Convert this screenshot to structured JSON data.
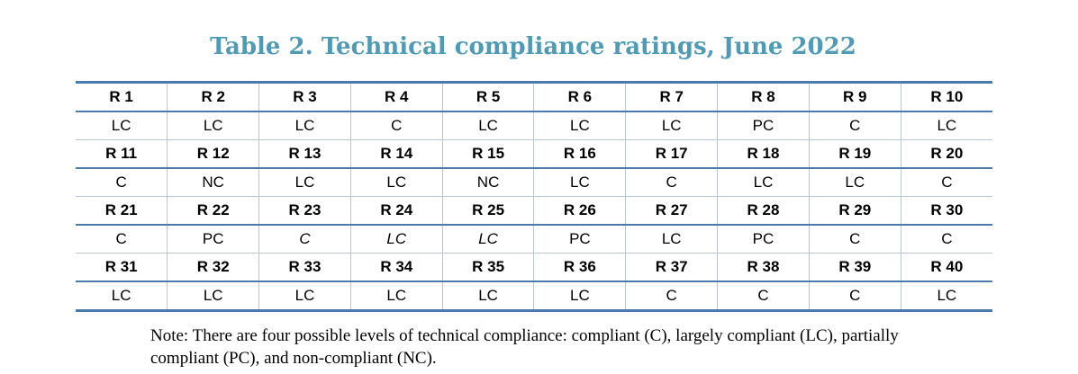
{
  "title": "Table 2. Technical compliance ratings, June 2022",
  "note": "Note: There are four possible levels of technical compliance: compliant (C), largely compliant (LC), partially compliant (PC), and non-compliant (NC).",
  "colors": {
    "title": "#4f9bb5",
    "rule": "#4a7aab",
    "grid": "#b9c6d3"
  },
  "rows": [
    {
      "headers": [
        "R 1",
        "R 2",
        "R 3",
        "R 4",
        "R 5",
        "R 6",
        "R 7",
        "R 8",
        "R 9",
        "R 10"
      ],
      "ratings": [
        "LC",
        "LC",
        "LC",
        "C",
        "LC",
        "LC",
        "LC",
        "PC",
        "C",
        "LC"
      ]
    },
    {
      "headers": [
        "R 11",
        "R 12",
        "R 13",
        "R 14",
        "R 15",
        "R 16",
        "R 17",
        "R 18",
        "R 19",
        "R 20"
      ],
      "ratings": [
        "C",
        "NC",
        "LC",
        "LC",
        "NC",
        "LC",
        "C",
        "LC",
        "LC",
        "C"
      ]
    },
    {
      "headers": [
        "R 21",
        "R 22",
        "R 23",
        "R 24",
        "R 25",
        "R 26",
        "R 27",
        "R 28",
        "R 29",
        "R 30"
      ],
      "ratings": [
        "C",
        "PC",
        "C",
        "LC",
        "LC",
        "PC",
        "LC",
        "PC",
        "C",
        "C"
      ],
      "italic": [
        false,
        false,
        true,
        true,
        true,
        false,
        false,
        false,
        false,
        false
      ]
    },
    {
      "headers": [
        "R 31",
        "R 32",
        "R 33",
        "R 34",
        "R 35",
        "R 36",
        "R 37",
        "R 38",
        "R 39",
        "R 40"
      ],
      "ratings": [
        "LC",
        "LC",
        "LC",
        "LC",
        "LC",
        "LC",
        "C",
        "C",
        "C",
        "LC"
      ]
    }
  ]
}
